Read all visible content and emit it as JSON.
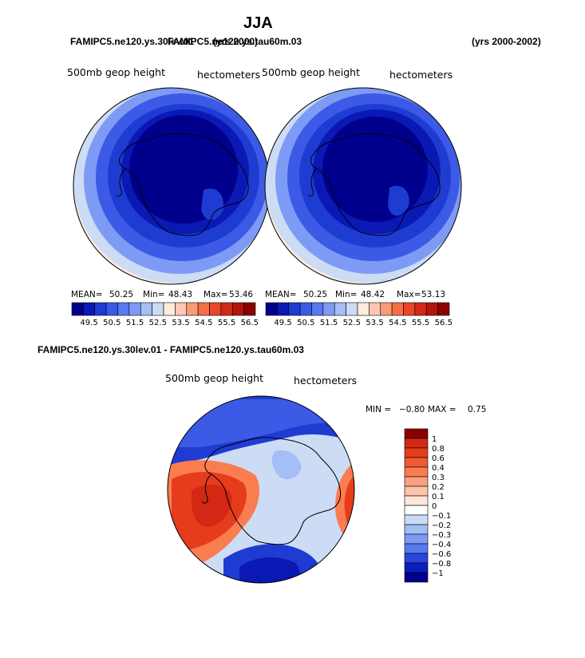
{
  "page_title": "JJA",
  "top": {
    "case_left": "FAMIPC5.ne120.ys.30lev.01",
    "case_right": "FAMIPC5.ne120.ys.tau60m.03",
    "case_left_years": "(yrs 2000)",
    "case_right_years": "(yrs 2000-2002)",
    "panels": [
      {
        "field": "500mb geop height",
        "units": "hectometers",
        "mean_label": "MEAN=",
        "mean": "50.25",
        "min_label": "Min=",
        "min": "48.43",
        "max_label": "Max=",
        "max": "53.46"
      },
      {
        "field": "500mb geop height",
        "units": "hectometers",
        "mean_label": "MEAN=",
        "mean": "50.25",
        "min_label": "Min=",
        "min": "48.42",
        "max_label": "Max=",
        "max": "53.13"
      }
    ],
    "colorbar_ticks": [
      "49.5",
      "50.5",
      "51.5",
      "52.5",
      "53.5",
      "54.5",
      "55.5",
      "56.5"
    ],
    "colorbar_colors": [
      "#00008c",
      "#0a18b4",
      "#1e3cd2",
      "#3c5ae6",
      "#5a78f0",
      "#7d9bf5",
      "#a5bef5",
      "#cddcf5",
      "#ffebdc",
      "#fcc8b4",
      "#fa9b78",
      "#f56e46",
      "#eb4628",
      "#d22814",
      "#b4140a",
      "#8c0000"
    ]
  },
  "diff": {
    "title": "FAMIPC5.ne120.ys.30lev.01 - FAMIPC5.ne120.ys.tau60m.03",
    "field": "500mb geop height",
    "units": "hectometers",
    "min_label": "MIN =",
    "min": "−0.80",
    "max_label": "MAX =",
    "max": "0.75",
    "colorbar_labels": [
      "1",
      "0.8",
      "0.6",
      "0.4",
      "0.3",
      "0.2",
      "0.1",
      "0",
      "−0.1",
      "−0.2",
      "−0.3",
      "−0.4",
      "−0.6",
      "−0.8",
      "−1"
    ],
    "colorbar_colors": [
      "#8c0000",
      "#d22814",
      "#e63c1e",
      "#f05a32",
      "#fa7d50",
      "#fca082",
      "#fcc3aa",
      "#ffe6d7",
      "#ffffff",
      "#c8dcfa",
      "#a0bef5",
      "#7d9bf5",
      "#5a78f0",
      "#2846dc",
      "#0a1ebe",
      "#00008c"
    ]
  },
  "colors": {
    "dark": "#00008c",
    "mid": "#1e3cd2",
    "light": "#7d9bf5",
    "pale": "#cddcf5",
    "warm": "#ffebdc",
    "red": "#e63c1e",
    "orange": "#fa7d50",
    "outline": "#000000"
  }
}
